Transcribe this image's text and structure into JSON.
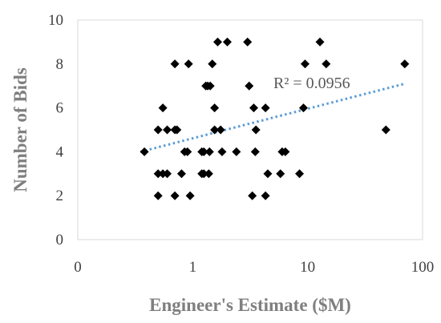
{
  "chart_data": {
    "type": "scatter",
    "xlabel": "Engineer's Estimate ($M)",
    "ylabel": "Number of Bids",
    "x_scale": "log",
    "x_ticks": [
      "0",
      "1",
      "10",
      "100"
    ],
    "y_ticks": [
      "0",
      "2",
      "4",
      "6",
      "8",
      "10"
    ],
    "xlim": [
      0.1,
      100
    ],
    "ylim": [
      0,
      10
    ],
    "grid": false,
    "marker_color": "#000000",
    "trendline": {
      "type": "log",
      "label": "R² = 0.0956",
      "color": "#5b9bd5",
      "x_range": [
        0.35,
        70
      ],
      "y_range": [
        4.0,
        7.1
      ]
    },
    "points": [
      {
        "x": 0.38,
        "y": 4
      },
      {
        "x": 0.5,
        "y": 2
      },
      {
        "x": 0.5,
        "y": 3
      },
      {
        "x": 0.5,
        "y": 5
      },
      {
        "x": 0.55,
        "y": 3
      },
      {
        "x": 0.55,
        "y": 6
      },
      {
        "x": 0.6,
        "y": 3
      },
      {
        "x": 0.6,
        "y": 5
      },
      {
        "x": 0.7,
        "y": 2
      },
      {
        "x": 0.7,
        "y": 8
      },
      {
        "x": 0.7,
        "y": 5
      },
      {
        "x": 0.73,
        "y": 5
      },
      {
        "x": 0.8,
        "y": 3
      },
      {
        "x": 0.85,
        "y": 4
      },
      {
        "x": 0.9,
        "y": 4
      },
      {
        "x": 0.92,
        "y": 8
      },
      {
        "x": 0.95,
        "y": 2
      },
      {
        "x": 1.2,
        "y": 3
      },
      {
        "x": 1.25,
        "y": 3
      },
      {
        "x": 1.2,
        "y": 4
      },
      {
        "x": 1.25,
        "y": 4
      },
      {
        "x": 1.3,
        "y": 7
      },
      {
        "x": 1.35,
        "y": 7
      },
      {
        "x": 1.38,
        "y": 3
      },
      {
        "x": 1.4,
        "y": 4
      },
      {
        "x": 1.42,
        "y": 7
      },
      {
        "x": 1.48,
        "y": 8
      },
      {
        "x": 1.55,
        "y": 6
      },
      {
        "x": 1.55,
        "y": 5
      },
      {
        "x": 1.65,
        "y": 9
      },
      {
        "x": 1.75,
        "y": 5
      },
      {
        "x": 1.8,
        "y": 4
      },
      {
        "x": 2.0,
        "y": 9
      },
      {
        "x": 2.4,
        "y": 4
      },
      {
        "x": 3.0,
        "y": 9
      },
      {
        "x": 3.1,
        "y": 7
      },
      {
        "x": 3.3,
        "y": 2
      },
      {
        "x": 3.4,
        "y": 6
      },
      {
        "x": 3.55,
        "y": 5
      },
      {
        "x": 3.5,
        "y": 4
      },
      {
        "x": 4.3,
        "y": 6
      },
      {
        "x": 4.3,
        "y": 2
      },
      {
        "x": 4.5,
        "y": 3
      },
      {
        "x": 5.8,
        "y": 3
      },
      {
        "x": 6.0,
        "y": 4
      },
      {
        "x": 6.4,
        "y": 4
      },
      {
        "x": 8.5,
        "y": 3
      },
      {
        "x": 9.2,
        "y": 6
      },
      {
        "x": 9.5,
        "y": 8
      },
      {
        "x": 12.8,
        "y": 9
      },
      {
        "x": 14.5,
        "y": 8
      },
      {
        "x": 48,
        "y": 5
      },
      {
        "x": 70,
        "y": 8
      }
    ]
  }
}
